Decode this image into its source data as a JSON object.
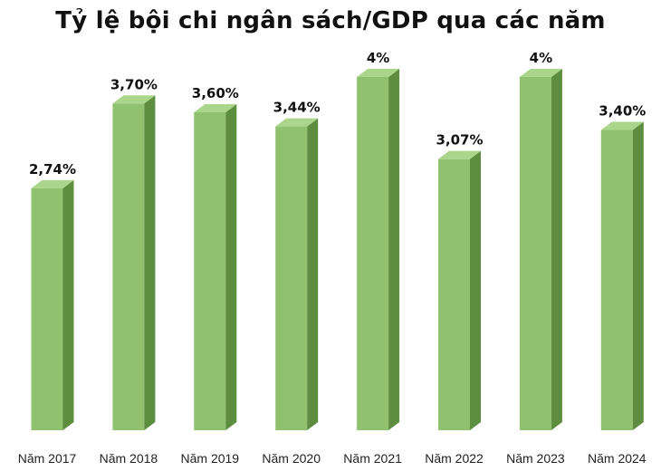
{
  "chart_data": {
    "type": "bar",
    "title": "Tỷ lệ bội chi ngân sách/GDP qua các năm",
    "categories": [
      "Năm 2017",
      "Năm 2018",
      "Năm 2019",
      "Năm 2020",
      "Năm 2021",
      "Năm 2022",
      "Năm 2023",
      "Năm 2024"
    ],
    "values": [
      2.74,
      3.7,
      3.6,
      3.44,
      4.0,
      3.07,
      4.0,
      3.4
    ],
    "data_labels": [
      "2,74%",
      "3,70%",
      "3,60%",
      "3,44%",
      "4%",
      "3,07%",
      "4%",
      "3,40%"
    ],
    "xlabel": "",
    "ylabel": "",
    "ylim": [
      0,
      4.8
    ],
    "grid": false,
    "bar_style": "3d-column",
    "colors": {
      "bar_front": "#8fc16f",
      "bar_side": "#5d8d3f",
      "bar_top": "#a9d68a",
      "label_text": "#111111"
    }
  }
}
